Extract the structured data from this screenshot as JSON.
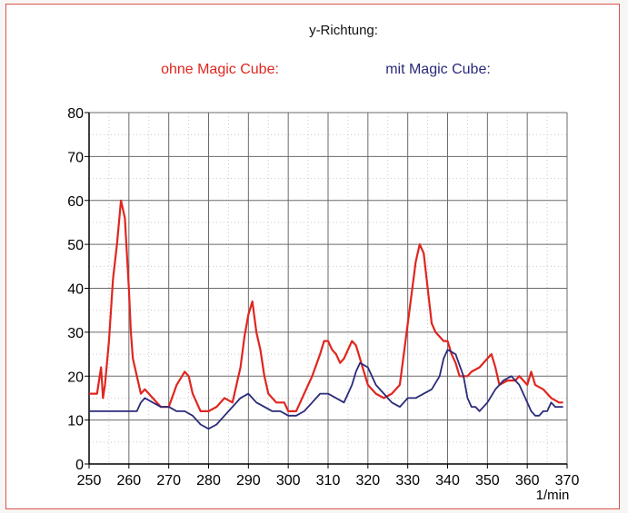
{
  "chart_data": {
    "type": "line",
    "title": "y-Richtung:",
    "xlabel": "1/min",
    "ylabel": "",
    "xlim": [
      250,
      370
    ],
    "ylim": [
      0,
      80
    ],
    "x_ticks": [
      "250",
      "260",
      "270",
      "280",
      "290",
      "300",
      "310",
      "320",
      "330",
      "340",
      "350",
      "360",
      "370"
    ],
    "y_ticks": [
      "0",
      "10",
      "20",
      "30",
      "40",
      "50",
      "60",
      "70",
      "80"
    ],
    "grid": true,
    "legend_position": "top",
    "series": [
      {
        "name": "ohne Magic Cube:",
        "color": "#e0261f",
        "points": [
          [
            250,
            16
          ],
          [
            252,
            16
          ],
          [
            253,
            22
          ],
          [
            253.5,
            15
          ],
          [
            254,
            18
          ],
          [
            255,
            28
          ],
          [
            256,
            42
          ],
          [
            257,
            50
          ],
          [
            258,
            60
          ],
          [
            259,
            56
          ],
          [
            260,
            40
          ],
          [
            260.5,
            30
          ],
          [
            261,
            24
          ],
          [
            262,
            20
          ],
          [
            263,
            16
          ],
          [
            264,
            17
          ],
          [
            265,
            16
          ],
          [
            266,
            15
          ],
          [
            268,
            13
          ],
          [
            270,
            13
          ],
          [
            272,
            18
          ],
          [
            274,
            21
          ],
          [
            275,
            20
          ],
          [
            276,
            16
          ],
          [
            278,
            12
          ],
          [
            280,
            12
          ],
          [
            282,
            13
          ],
          [
            284,
            15
          ],
          [
            286,
            14
          ],
          [
            288,
            22
          ],
          [
            289,
            29
          ],
          [
            290,
            34
          ],
          [
            291,
            37
          ],
          [
            292,
            30
          ],
          [
            293,
            26
          ],
          [
            294,
            20
          ],
          [
            295,
            16
          ],
          [
            297,
            14
          ],
          [
            299,
            14
          ],
          [
            300,
            12
          ],
          [
            302,
            12
          ],
          [
            304,
            16
          ],
          [
            306,
            20
          ],
          [
            308,
            25
          ],
          [
            309,
            28
          ],
          [
            310,
            28
          ],
          [
            311,
            26
          ],
          [
            312,
            25
          ],
          [
            313,
            23
          ],
          [
            314,
            24
          ],
          [
            315,
            26
          ],
          [
            316,
            28
          ],
          [
            317,
            27
          ],
          [
            318,
            24
          ],
          [
            319,
            21
          ],
          [
            320,
            18
          ],
          [
            322,
            16
          ],
          [
            324,
            15
          ],
          [
            326,
            16
          ],
          [
            328,
            18
          ],
          [
            330,
            32
          ],
          [
            332,
            46
          ],
          [
            333,
            50
          ],
          [
            334,
            48
          ],
          [
            335,
            40
          ],
          [
            336,
            32
          ],
          [
            337,
            30
          ],
          [
            338,
            29
          ],
          [
            339,
            28
          ],
          [
            340,
            28
          ],
          [
            341,
            25
          ],
          [
            342,
            23
          ],
          [
            343,
            20
          ],
          [
            345,
            20
          ],
          [
            346,
            21
          ],
          [
            348,
            22
          ],
          [
            350,
            24
          ],
          [
            351,
            25
          ],
          [
            352,
            22
          ],
          [
            353,
            18
          ],
          [
            355,
            19
          ],
          [
            357,
            19
          ],
          [
            358,
            20
          ],
          [
            360,
            18
          ],
          [
            361,
            21
          ],
          [
            362,
            18
          ],
          [
            364,
            17
          ],
          [
            366,
            15
          ],
          [
            368,
            14
          ],
          [
            369,
            14
          ]
        ]
      },
      {
        "name": "mit Magic Cube:",
        "color": "#2a2a7a",
        "points": [
          [
            250,
            12
          ],
          [
            253,
            12
          ],
          [
            256,
            12
          ],
          [
            259,
            12
          ],
          [
            262,
            12
          ],
          [
            263,
            14
          ],
          [
            264,
            15
          ],
          [
            266,
            14
          ],
          [
            268,
            13
          ],
          [
            270,
            13
          ],
          [
            272,
            12
          ],
          [
            274,
            12
          ],
          [
            276,
            11
          ],
          [
            278,
            9
          ],
          [
            280,
            8
          ],
          [
            282,
            9
          ],
          [
            284,
            11
          ],
          [
            286,
            13
          ],
          [
            288,
            15
          ],
          [
            290,
            16
          ],
          [
            292,
            14
          ],
          [
            294,
            13
          ],
          [
            296,
            12
          ],
          [
            298,
            12
          ],
          [
            300,
            11
          ],
          [
            302,
            11
          ],
          [
            304,
            12
          ],
          [
            306,
            14
          ],
          [
            308,
            16
          ],
          [
            310,
            16
          ],
          [
            312,
            15
          ],
          [
            314,
            14
          ],
          [
            316,
            18
          ],
          [
            317,
            21
          ],
          [
            318,
            23
          ],
          [
            320,
            22
          ],
          [
            322,
            18
          ],
          [
            324,
            16
          ],
          [
            326,
            14
          ],
          [
            328,
            13
          ],
          [
            329,
            14
          ],
          [
            330,
            15
          ],
          [
            332,
            15
          ],
          [
            334,
            16
          ],
          [
            336,
            17
          ],
          [
            338,
            20
          ],
          [
            339,
            24
          ],
          [
            340,
            26
          ],
          [
            342,
            25
          ],
          [
            344,
            20
          ],
          [
            345,
            15
          ],
          [
            346,
            13
          ],
          [
            347,
            13
          ],
          [
            348,
            12
          ],
          [
            350,
            14
          ],
          [
            352,
            17
          ],
          [
            354,
            19
          ],
          [
            356,
            20
          ],
          [
            358,
            18
          ],
          [
            360,
            14
          ],
          [
            361,
            12
          ],
          [
            362,
            11
          ],
          [
            363,
            11
          ],
          [
            364,
            12
          ],
          [
            365,
            12
          ],
          [
            366,
            14
          ],
          [
            367,
            13
          ],
          [
            368,
            13
          ],
          [
            369,
            13
          ]
        ]
      }
    ]
  }
}
